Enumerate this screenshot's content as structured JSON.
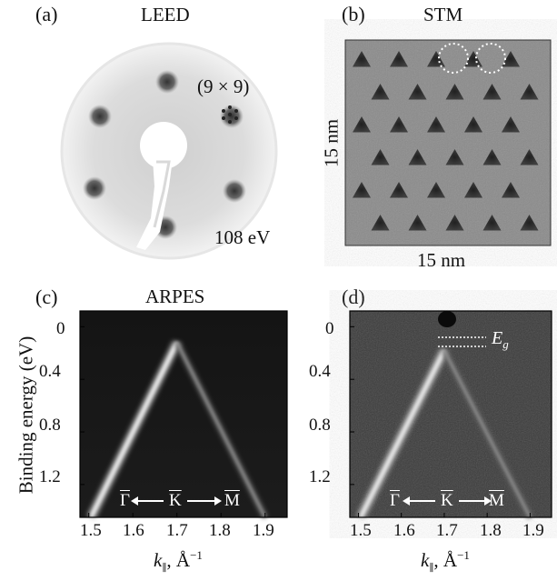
{
  "panels": {
    "a": {
      "letter": "(a)",
      "title": "LEED",
      "annotation": "(9 × 9)",
      "energy": "108 eV"
    },
    "b": {
      "letter": "(b)",
      "title": "STM",
      "ylabel": "15 nm",
      "xlabel": "15 nm"
    },
    "c": {
      "letter": "(c)",
      "title": "ARPES"
    },
    "d": {
      "letter": "(d)",
      "gap_label": "E",
      "gap_subscript": "g"
    }
  },
  "arpes": {
    "ylabel": "Binding energy (eV)",
    "xlabel_k": "k",
    "xlabel_sub": "∥",
    "xlabel_unit": ", Å",
    "xlabel_exp": "−1",
    "path": {
      "gamma": "Γ",
      "k": "K",
      "m": "M"
    },
    "x_ticks": [
      "1.5",
      "1.6",
      "1.7",
      "1.8",
      "1.9"
    ],
    "y_ticks": [
      "0",
      "0.4",
      "0.8",
      "1.2"
    ]
  },
  "chart_data": [
    {
      "type": "line",
      "panel": "c",
      "title": "ARPES",
      "xlabel": "k∥, Å−1",
      "ylabel": "Binding energy (eV)",
      "xlim": [
        1.48,
        1.95
      ],
      "ylim": [
        1.45,
        -0.12
      ],
      "series": [
        {
          "x": [
            1.505,
            1.7
          ],
          "y": [
            1.45,
            0.12
          ]
        },
        {
          "x": [
            1.7,
            1.9
          ],
          "y": [
            0.12,
            1.45
          ]
        }
      ]
    },
    {
      "type": "line",
      "panel": "d",
      "xlabel": "k∥, Å−1",
      "xlim": [
        1.48,
        1.95
      ],
      "ylim": [
        1.45,
        -0.12
      ],
      "series": [
        {
          "x": [
            1.505,
            1.7
          ],
          "y": [
            1.45,
            0.18
          ]
        },
        {
          "x": [
            1.7,
            1.9
          ],
          "y": [
            0.18,
            1.45
          ]
        }
      ]
    }
  ]
}
